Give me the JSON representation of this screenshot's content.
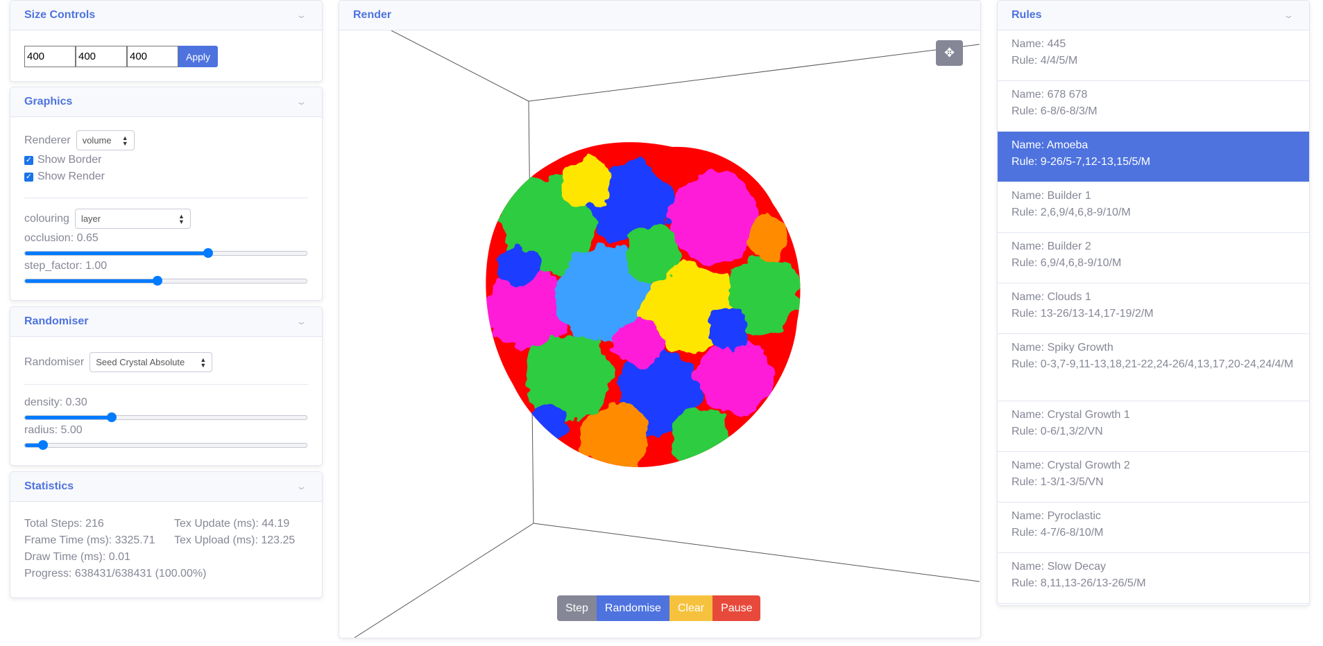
{
  "size_controls": {
    "title": "Size Controls",
    "x_value": "400",
    "y_value": "400",
    "z_value": "400",
    "apply_label": "Apply"
  },
  "graphics": {
    "title": "Graphics",
    "renderer_label": "Renderer",
    "renderer_value": "volume",
    "show_border_label": "Show Border",
    "show_border_checked": true,
    "show_render_label": "Show Render",
    "show_render_checked": true,
    "colouring_label": "colouring",
    "colouring_value": "layer",
    "occlusion_label": "occlusion: 0.65",
    "occlusion_fraction": 0.65,
    "step_factor_label": "step_factor: 1.00",
    "step_factor_fraction": 0.47
  },
  "randomiser": {
    "title": "Randomiser",
    "randomiser_label": "Randomiser",
    "randomiser_value": "Seed Crystal Absolute",
    "density_label": "density: 0.30",
    "density_fraction": 0.31,
    "radius_label": "radius: 5.00",
    "radius_fraction": 0.065
  },
  "statistics": {
    "title": "Statistics",
    "total_steps": "Total Steps: 216",
    "tex_update": "Tex Update (ms): 44.19",
    "frame_time": "Frame Time (ms): 3325.71",
    "tex_upload": "Tex Upload (ms): 123.25",
    "draw_time": "Draw Time (ms): 0.01",
    "progress": "Progress: 638431/638431 (100.00%)"
  },
  "render": {
    "title": "Render",
    "buttons": {
      "step": "Step",
      "randomise": "Randomise",
      "clear": "Clear",
      "pause": "Pause"
    },
    "colors": {
      "step": "#858796",
      "randomise": "#4e73df",
      "clear": "#f6c23e",
      "pause": "#e74a3b"
    }
  },
  "rules": {
    "title": "Rules",
    "selected_index": 2,
    "items": [
      {
        "name": "Name: 445",
        "rule": "Rule: 4/4/5/M"
      },
      {
        "name": "Name: 678 678",
        "rule": "Rule: 6-8/6-8/3/M"
      },
      {
        "name": "Name: Amoeba",
        "rule": "Rule: 9-26/5-7,12-13,15/5/M"
      },
      {
        "name": "Name: Builder 1",
        "rule": "Rule: 2,6,9/4,6,8-9/10/M"
      },
      {
        "name": "Name: Builder 2",
        "rule": "Rule: 6,9/4,6,8-9/10/M"
      },
      {
        "name": "Name: Clouds 1",
        "rule": "Rule: 13-26/13-14,17-19/2/M"
      },
      {
        "name": "Name: Spiky Growth",
        "rule": "Rule: 0-3,7-9,11-13,18,21-22,24-26/4,13,17,20-24,24/4/M"
      },
      {
        "name": "Name: Crystal Growth 1",
        "rule": "Rule: 0-6/1,3/2/VN"
      },
      {
        "name": "Name: Crystal Growth 2",
        "rule": "Rule: 1-3/1-3/5/VN"
      },
      {
        "name": "Name: Pyroclastic",
        "rule": "Rule: 4-7/6-8/10/M"
      },
      {
        "name": "Name: Slow Decay",
        "rule": "Rule: 8,11,13-26/13-26/5/M"
      }
    ]
  },
  "icons": {
    "collapse": "chevron-down-icon",
    "move": "move-arrows-icon"
  }
}
